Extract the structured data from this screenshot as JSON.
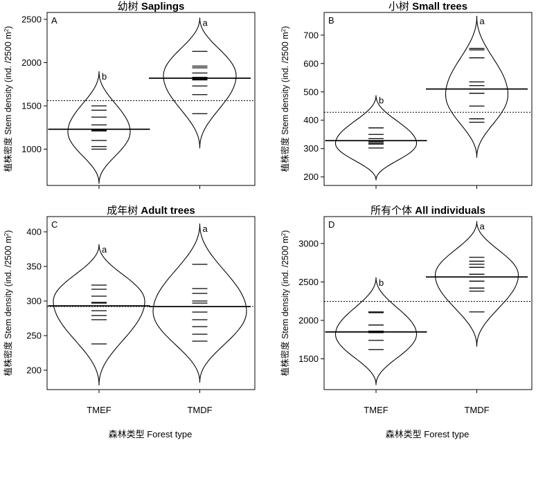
{
  "figure": {
    "x_axis_label": "森林类型 Forest type",
    "y_axis_label_cn": "植株密度",
    "y_axis_label_en": "Stem density",
    "y_axis_unit": "(ind. /2500 m",
    "y_axis_unit_sup": "2",
    "y_axis_unit_close": ")"
  },
  "chart_data": [
    {
      "type": "bean",
      "panel": "A",
      "title_cn": "幼树",
      "title_en": "Saplings",
      "categories": [
        "TMEF",
        "TMDF"
      ],
      "ylim": [
        580,
        2580
      ],
      "yticks": [
        1000,
        1500,
        2000,
        2500
      ],
      "overall_mean": 1560,
      "groups": [
        {
          "category": "TMEF",
          "letter": "b",
          "mean": 1230,
          "min": 600,
          "max": 1900,
          "peak": 1200,
          "width": 0.6,
          "points": [
            1500,
            1450,
            1370,
            1280,
            1220,
            1210,
            1100,
            1030,
            1000
          ]
        },
        {
          "category": "TMDF",
          "letter": "a",
          "mean": 1820,
          "min": 1010,
          "max": 2520,
          "peak": 1850,
          "width": 0.7,
          "points": [
            2130,
            1960,
            1940,
            1880,
            1830,
            1810,
            1800,
            1730,
            1630,
            1410
          ]
        }
      ]
    },
    {
      "type": "bean",
      "panel": "B",
      "title_cn": "小树",
      "title_en": "Small trees",
      "categories": [
        "TMEF",
        "TMDF"
      ],
      "ylim": [
        170,
        780
      ],
      "yticks": [
        200,
        300,
        400,
        500,
        600,
        700
      ],
      "overall_mean": 428,
      "groups": [
        {
          "category": "TMEF",
          "letter": "b",
          "mean": 328,
          "min": 188,
          "max": 488,
          "peak": 318,
          "width": 0.78,
          "points": [
            373,
            350,
            335,
            325,
            320,
            316,
            302
          ]
        },
        {
          "category": "TMDF",
          "letter": "a",
          "mean": 510,
          "min": 268,
          "max": 768,
          "peak": 490,
          "width": 0.6,
          "points": [
            653,
            648,
            620,
            535,
            522,
            495,
            450,
            405,
            393
          ]
        }
      ]
    },
    {
      "type": "bean",
      "panel": "C",
      "title_cn": "成年树",
      "title_en": "Adult trees",
      "categories": [
        "TMEF",
        "TMDF"
      ],
      "ylim": [
        172,
        422
      ],
      "yticks": [
        200,
        250,
        300,
        350,
        400
      ],
      "overall_mean": 292,
      "groups": [
        {
          "category": "TMEF",
          "letter": "a",
          "mean": 293,
          "min": 178,
          "max": 382,
          "peak": 300,
          "width": 0.88,
          "points": [
            323,
            317,
            307,
            298,
            297,
            286,
            279,
            273,
            238
          ]
        },
        {
          "category": "TMDF",
          "letter": "a",
          "mean": 292,
          "min": 182,
          "max": 412,
          "peak": 285,
          "width": 0.9,
          "points": [
            353,
            318,
            311,
            300,
            297,
            284,
            273,
            263,
            252,
            242
          ]
        }
      ]
    },
    {
      "type": "bean",
      "panel": "D",
      "title_cn": "所有个体",
      "title_en": "All individuals",
      "categories": [
        "TMEF",
        "TMDF"
      ],
      "ylim": [
        1100,
        3350
      ],
      "yticks": [
        1500,
        2000,
        2500,
        3000
      ],
      "overall_mean": 2248,
      "groups": [
        {
          "category": "TMEF",
          "letter": "b",
          "mean": 1850,
          "min": 1160,
          "max": 2560,
          "peak": 1820,
          "width": 0.78,
          "points": [
            2110,
            2100,
            1940,
            1860,
            1850,
            1840,
            1740,
            1620
          ]
        },
        {
          "category": "TMDF",
          "letter": "a",
          "mean": 2565,
          "min": 1660,
          "max": 3290,
          "peak": 2590,
          "width": 0.8,
          "points": [
            2820,
            2770,
            2730,
            2690,
            2600,
            2510,
            2420,
            2380,
            2110
          ]
        }
      ]
    }
  ]
}
